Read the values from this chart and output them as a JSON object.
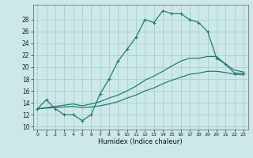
{
  "title": "",
  "xlabel": "Humidex (Indice chaleur)",
  "ylabel": "",
  "x_ticks": [
    0,
    1,
    2,
    3,
    4,
    5,
    6,
    7,
    8,
    9,
    10,
    11,
    12,
    13,
    14,
    15,
    16,
    17,
    18,
    19,
    20,
    21,
    22,
    23
  ],
  "x_tick_labels": [
    "0",
    "1",
    "2",
    "3",
    "4",
    "5",
    "6",
    "7",
    "8",
    "9",
    "10",
    "11",
    "12",
    "13",
    "14",
    "15",
    "16",
    "17",
    "18",
    "19",
    "20",
    "21",
    "22",
    "23"
  ],
  "ylim": [
    9.5,
    30.5
  ],
  "xlim": [
    -0.5,
    23.5
  ],
  "y_ticks": [
    10,
    12,
    14,
    16,
    18,
    20,
    22,
    24,
    26,
    28
  ],
  "bg_color": "#cce8e8",
  "grid_color": "#aed4d4",
  "line_color": "#1a7a6e",
  "main_line": [
    13.0,
    14.5,
    13.0,
    12.0,
    12.0,
    11.0,
    12.0,
    15.5,
    18.0,
    21.0,
    23.0,
    25.0,
    28.0,
    27.5,
    29.5,
    29.0,
    29.0,
    28.0,
    27.5,
    26.0,
    21.5,
    20.5,
    19.0,
    19.0
  ],
  "line2": [
    13.0,
    13.2,
    13.4,
    13.6,
    13.8,
    13.5,
    13.8,
    14.2,
    14.8,
    15.3,
    16.0,
    16.8,
    17.8,
    18.5,
    19.3,
    20.2,
    21.0,
    21.5,
    21.5,
    21.8,
    21.8,
    20.5,
    19.5,
    19.2
  ],
  "line3": [
    13.0,
    13.1,
    13.2,
    13.3,
    13.4,
    13.2,
    13.3,
    13.5,
    13.8,
    14.2,
    14.8,
    15.3,
    16.0,
    16.5,
    17.2,
    17.8,
    18.3,
    18.8,
    19.0,
    19.3,
    19.3,
    19.1,
    18.8,
    18.7
  ]
}
